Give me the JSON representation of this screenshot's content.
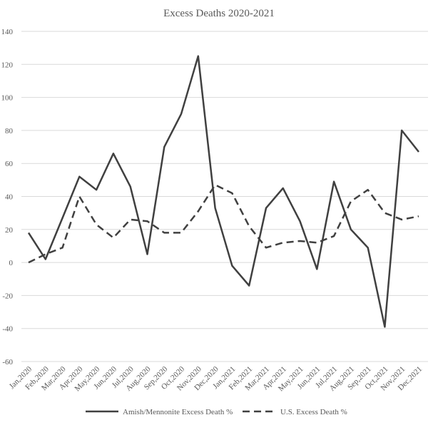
{
  "chart_data": {
    "type": "line",
    "title": "Excess Deaths 2020-2021",
    "xlabel": "",
    "ylabel": "",
    "ylim": [
      -60,
      140
    ],
    "yticks": [
      -60,
      -40,
      -20,
      0,
      20,
      40,
      60,
      80,
      100,
      120,
      140
    ],
    "grid": true,
    "legend_position": "bottom",
    "categories": [
      "Jan,2020",
      "Feb,2020",
      "Mar,2020",
      "Apr,2020",
      "May,2020",
      "Jun,2020",
      "Jul,2020",
      "Aug,2020",
      "Sep,2020",
      "Oct,2020",
      "Nov,2020",
      "Dec,2020",
      "Jan,2021",
      "Feb,2021",
      "Mar,2021",
      "Apr,2021",
      "May,2021",
      "Jun,2021",
      "Jul,2021",
      "Aug,2021",
      "Sep,2021",
      "Oct,2021",
      "Nov,2021",
      "Dec,2021"
    ],
    "series": [
      {
        "name": "Amish/Mennonite Excess Death %",
        "style": "solid",
        "color": "#404040",
        "values": [
          18,
          2,
          27,
          52,
          44,
          66,
          46,
          5,
          70,
          90,
          125,
          33,
          -2,
          -14,
          33,
          45,
          25,
          -4,
          49,
          20,
          9,
          -39,
          80,
          67
        ]
      },
      {
        "name": "U.S. Excess Death %",
        "style": "dashed",
        "color": "#404040",
        "values": [
          0,
          5,
          9,
          40,
          23,
          15,
          26,
          25,
          18,
          18,
          31,
          47,
          42,
          22,
          9,
          12,
          13,
          12,
          16,
          37,
          44,
          30,
          26,
          28
        ]
      }
    ]
  }
}
